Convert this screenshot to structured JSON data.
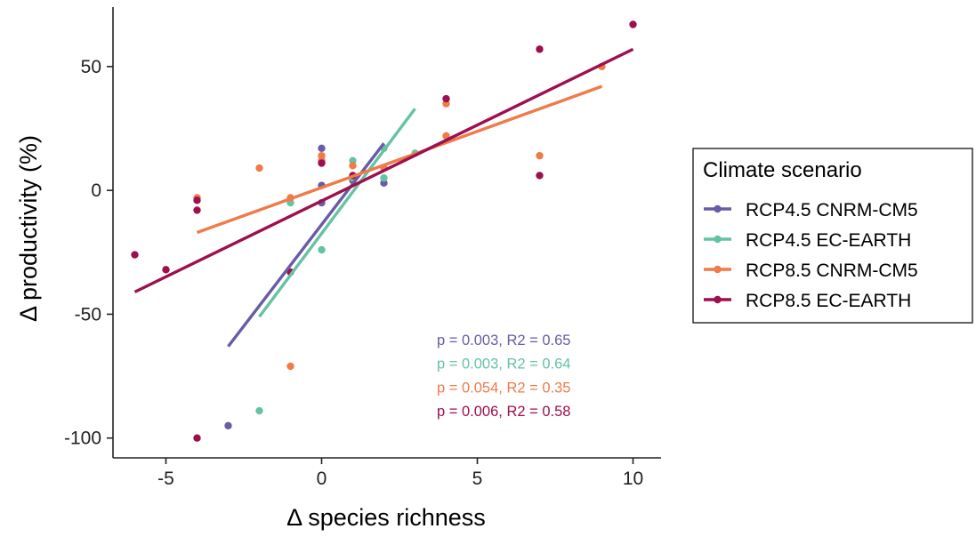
{
  "chart_data": {
    "type": "scatter",
    "xlabel": "Δ species richness",
    "ylabel": "Δ productivity (%)",
    "xlim": [
      -6.7,
      10.9
    ],
    "ylim": [
      -108,
      74
    ],
    "x_ticks": [
      -5,
      0,
      5,
      10
    ],
    "y_ticks": [
      -100,
      -50,
      0,
      50
    ],
    "x_tick_labels": [
      "-5",
      "0",
      "5",
      "10"
    ],
    "y_tick_labels": [
      "-100",
      "-50",
      "0",
      "50"
    ],
    "grid": false,
    "legend": {
      "title": "Climate scenario",
      "position": "right"
    },
    "series": [
      {
        "name": "RCP4.5 CNRM-CM5",
        "color": "#6A5BA6",
        "points": [
          [
            0,
            17
          ],
          [
            0,
            12
          ],
          [
            0,
            2
          ],
          [
            0,
            -5
          ],
          [
            1,
            4
          ],
          [
            2,
            3
          ],
          [
            -3,
            -95
          ]
        ],
        "fit": [
          [
            -3,
            -63
          ],
          [
            2,
            19
          ]
        ],
        "stat": "p = 0.003, R2 = 0.65"
      },
      {
        "name": "RCP4.5 EC-EARTH",
        "color": "#66C2A5",
        "points": [
          [
            -1,
            -5
          ],
          [
            0,
            -24
          ],
          [
            1,
            12
          ],
          [
            1,
            5
          ],
          [
            2,
            17
          ],
          [
            2,
            5
          ],
          [
            3,
            15
          ],
          [
            -2,
            -89
          ]
        ],
        "fit": [
          [
            -2,
            -51
          ],
          [
            3,
            33
          ]
        ],
        "stat": "p = 0.003, R2 = 0.64"
      },
      {
        "name": "RCP8.5 CNRM-CM5",
        "color": "#F07A48",
        "points": [
          [
            -4,
            -3
          ],
          [
            -2,
            9
          ],
          [
            -1,
            -3
          ],
          [
            -1,
            -71
          ],
          [
            0,
            14
          ],
          [
            0,
            12
          ],
          [
            1,
            10
          ],
          [
            2,
            9
          ],
          [
            4,
            35
          ],
          [
            4,
            22
          ],
          [
            7,
            14
          ],
          [
            9,
            50
          ]
        ],
        "fit": [
          [
            -4,
            -17
          ],
          [
            9,
            42
          ]
        ],
        "stat": "p = 0.054, R2 = 0.35"
      },
      {
        "name": "RCP8.5 EC-EARTH",
        "color": "#9E0F4E",
        "points": [
          [
            -6,
            -26
          ],
          [
            -5,
            -32
          ],
          [
            -4,
            -4
          ],
          [
            -4,
            -8
          ],
          [
            -4,
            -100
          ],
          [
            -1,
            -33
          ],
          [
            0,
            11
          ],
          [
            1,
            6
          ],
          [
            4,
            37
          ],
          [
            7,
            57
          ],
          [
            7,
            6
          ],
          [
            10,
            67
          ]
        ],
        "fit": [
          [
            -6,
            -41
          ],
          [
            10,
            57
          ]
        ],
        "stat": "p = 0.006, R2 = 0.58"
      }
    ]
  }
}
